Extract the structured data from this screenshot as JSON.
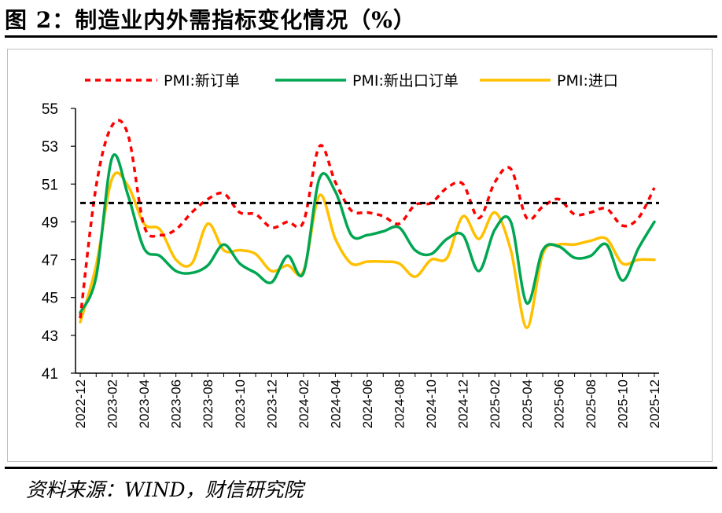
{
  "title": "图 2：制造业内外需指标变化情况（%）",
  "source": "资料来源：WIND，财信研究院",
  "colors": {
    "new_orders": "#ff0000",
    "new_export_orders": "#00a651",
    "imports": "#ffc000",
    "threshold": "#000000"
  },
  "chart_data": {
    "type": "line",
    "title": "制造业内外需指标变化情况（%）",
    "xlabel": "",
    "ylabel": "",
    "ylim": [
      41,
      55
    ],
    "yticks": [
      41,
      43,
      45,
      47,
      49,
      51,
      53,
      55
    ],
    "x": [
      "2022-12",
      "2023-01",
      "2023-02",
      "2023-03",
      "2023-04",
      "2023-05",
      "2023-06",
      "2023-07",
      "2023-08",
      "2023-09",
      "2023-10",
      "2023-11",
      "2023-12",
      "2024-01",
      "2024-02",
      "2024-03",
      "2024-04",
      "2024-05",
      "2024-06",
      "2024-07",
      "2024-08",
      "2024-09",
      "2024-10",
      "2024-11",
      "2024-12",
      "2025-01",
      "2025-02",
      "2025-03",
      "2025-04",
      "2025-05",
      "2025-06",
      "2025-07",
      "2025-08",
      "2025-09",
      "2025-10",
      "2025-11",
      "2025-12"
    ],
    "tick_labels": [
      "2022-12",
      "2023-02",
      "2023-04",
      "2023-06",
      "2023-08",
      "2023-10",
      "2023-12",
      "2024-02",
      "2024-04",
      "2024-06",
      "2024-08",
      "2024-10",
      "2024-12",
      "2025-02",
      "2025-04",
      "2025-06",
      "2025-08",
      "2025-10",
      "2025-12"
    ],
    "threshold": 50,
    "series": [
      {
        "name": "PMI:新订单",
        "style": "dashed",
        "color": "#ff0000",
        "values": [
          43.9,
          50.9,
          54.1,
          53.6,
          48.8,
          48.3,
          48.6,
          49.5,
          50.2,
          50.5,
          49.5,
          49.4,
          48.7,
          49.0,
          49.0,
          53.0,
          51.1,
          49.6,
          49.5,
          49.3,
          48.9,
          49.9,
          50.0,
          50.8,
          51.0,
          49.2,
          51.1,
          51.8,
          49.2,
          49.8,
          50.2,
          49.4,
          49.5,
          49.7,
          48.8,
          49.2,
          50.8
        ]
      },
      {
        "name": "PMI:新出口订单",
        "style": "solid",
        "color": "#00a651",
        "values": [
          44.2,
          46.1,
          52.4,
          50.4,
          47.6,
          47.2,
          46.4,
          46.3,
          46.7,
          47.8,
          46.8,
          46.3,
          45.8,
          47.2,
          46.3,
          51.3,
          50.6,
          48.3,
          48.3,
          48.5,
          48.7,
          47.5,
          47.3,
          48.1,
          48.3,
          46.4,
          48.6,
          49.0,
          44.7,
          47.5,
          47.7,
          47.1,
          47.2,
          47.8,
          45.9,
          47.6,
          49.0
        ]
      },
      {
        "name": "PMI:进口",
        "style": "solid",
        "color": "#ffc000",
        "values": [
          43.7,
          46.7,
          51.3,
          50.9,
          48.9,
          48.6,
          47.0,
          46.8,
          48.9,
          47.5,
          47.5,
          47.3,
          46.4,
          46.7,
          46.4,
          50.4,
          48.1,
          46.8,
          46.9,
          46.9,
          46.8,
          46.1,
          47.0,
          47.1,
          49.3,
          48.1,
          49.5,
          47.5,
          43.4,
          47.3,
          47.8,
          47.8,
          48.0,
          48.1,
          46.8,
          47.0,
          47.0
        ]
      }
    ],
    "legend_position": "top"
  }
}
